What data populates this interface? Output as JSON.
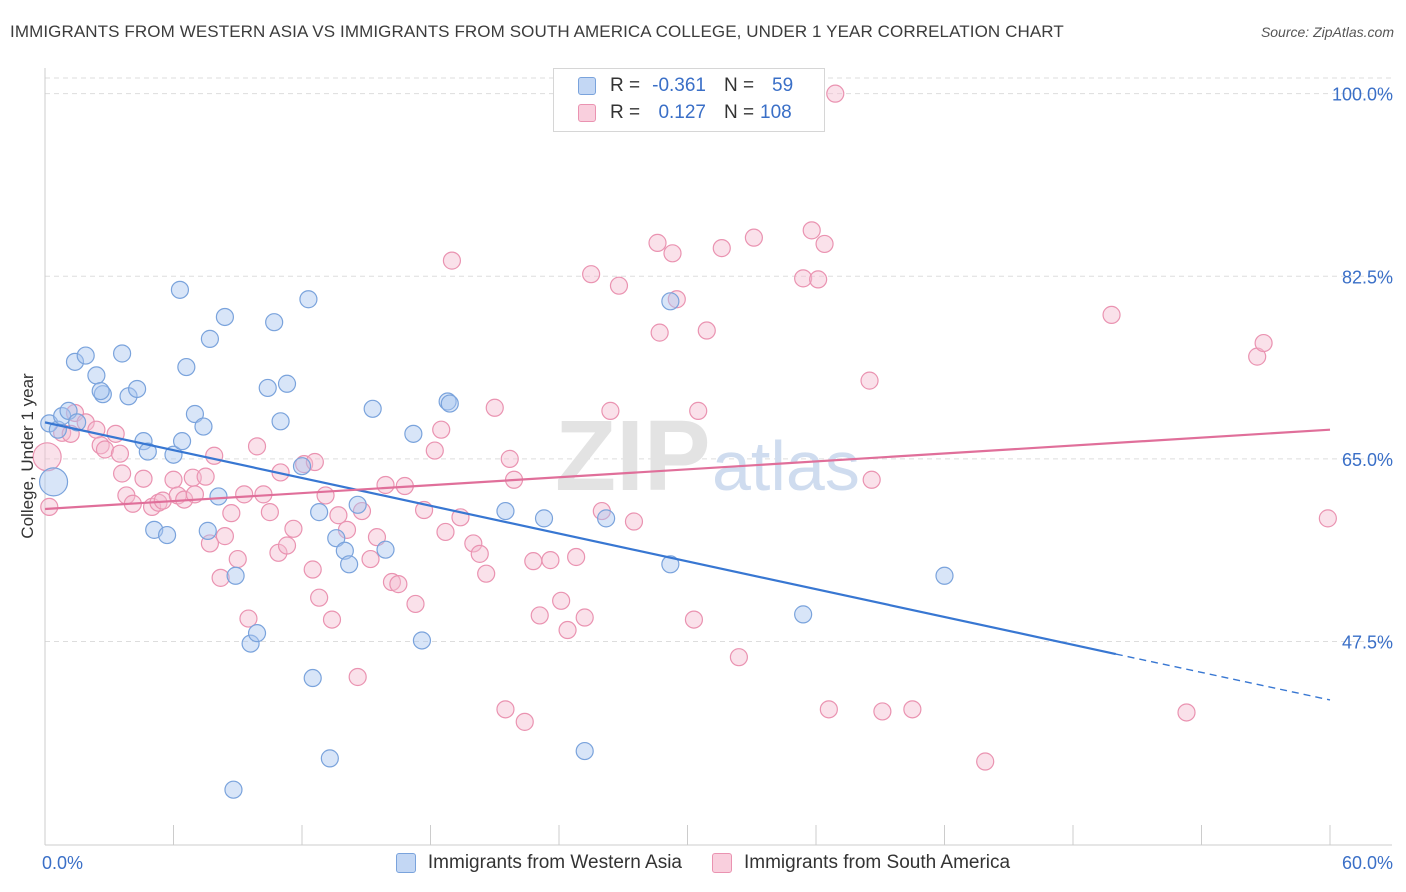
{
  "title": "IMMIGRANTS FROM WESTERN ASIA VS IMMIGRANTS FROM SOUTH AMERICA COLLEGE, UNDER 1 YEAR CORRELATION CHART",
  "source": "Source: ZipAtlas.com",
  "watermark": "ZIPatlas",
  "legend": {
    "row1": {
      "r_label": "R =",
      "r_value": "-0.361",
      "n_label": "N =",
      "n_value": "59"
    },
    "row2": {
      "r_label": "R =",
      "r_value": "0.127",
      "n_label": "N =",
      "n_value": "108"
    }
  },
  "colors": {
    "blue_fill": "#a9c6ef",
    "blue_stroke": "#7aa3dc",
    "blue_line": "#3877d2",
    "pink_fill": "#f5bcd0",
    "pink_stroke": "#ea93b1",
    "pink_line": "#e06f9a",
    "tick_text": "#3a6fc7",
    "grid": "#dddddd"
  },
  "chart_data": {
    "type": "scatter",
    "title": "IMMIGRANTS FROM WESTERN ASIA VS IMMIGRANTS FROM SOUTH AMERICA COLLEGE, UNDER 1 YEAR CORRELATION CHART",
    "xlabel": "",
    "ylabel": "College, Under 1 year",
    "xlim": [
      0,
      60
    ],
    "ylim": [
      28,
      101.5
    ],
    "x_tick_labels": [
      "0.0%",
      "60.0%"
    ],
    "y_ticks": [
      47.5,
      65.0,
      82.5,
      100.0
    ],
    "y_tick_labels": [
      "47.5%",
      "65.0%",
      "82.5%",
      "100.0%"
    ],
    "grid": true,
    "legend_placement": "top-center",
    "series": [
      {
        "name": "Immigrants from Western Asia",
        "color": "#a9c6ef",
        "trend": {
          "x": [
            0,
            50
          ],
          "y": [
            68.5,
            46.3
          ],
          "dashed_to_x": 60,
          "dashed_to_y": 41.9
        },
        "points": [
          [
            0.2,
            68.4
          ],
          [
            0.4,
            62.8
          ],
          [
            0.6,
            67.8
          ],
          [
            0.8,
            69.1
          ],
          [
            1.1,
            69.6
          ],
          [
            1.4,
            74.3
          ],
          [
            1.5,
            68.5
          ],
          [
            1.9,
            74.9
          ],
          [
            2.4,
            73.0
          ],
          [
            2.7,
            71.2
          ],
          [
            2.6,
            71.5
          ],
          [
            3.6,
            75.1
          ],
          [
            3.9,
            71.0
          ],
          [
            4.3,
            71.7
          ],
          [
            4.6,
            66.7
          ],
          [
            4.8,
            65.7
          ],
          [
            5.1,
            58.2
          ],
          [
            5.7,
            57.7
          ],
          [
            6.0,
            65.4
          ],
          [
            6.4,
            66.7
          ],
          [
            6.3,
            81.2
          ],
          [
            6.6,
            73.8
          ],
          [
            7.0,
            69.3
          ],
          [
            7.4,
            68.1
          ],
          [
            7.6,
            58.1
          ],
          [
            7.7,
            76.5
          ],
          [
            8.1,
            61.4
          ],
          [
            8.4,
            78.6
          ],
          [
            8.9,
            53.8
          ],
          [
            9.6,
            47.3
          ],
          [
            9.9,
            48.3
          ],
          [
            10.4,
            71.8
          ],
          [
            10.7,
            78.1
          ],
          [
            11.0,
            68.6
          ],
          [
            11.3,
            72.2
          ],
          [
            12.0,
            64.3
          ],
          [
            12.3,
            80.3
          ],
          [
            12.5,
            44.0
          ],
          [
            12.8,
            59.9
          ],
          [
            13.3,
            36.3
          ],
          [
            13.6,
            57.4
          ],
          [
            14.0,
            56.2
          ],
          [
            14.2,
            54.9
          ],
          [
            14.6,
            60.6
          ],
          [
            15.3,
            69.8
          ],
          [
            15.9,
            56.3
          ],
          [
            17.2,
            67.4
          ],
          [
            17.6,
            47.6
          ],
          [
            18.8,
            70.5
          ],
          [
            18.9,
            70.3
          ],
          [
            21.5,
            60.0
          ],
          [
            23.3,
            59.3
          ],
          [
            25.2,
            37.0
          ],
          [
            26.2,
            59.3
          ],
          [
            29.2,
            54.9
          ],
          [
            29.2,
            80.1
          ],
          [
            35.4,
            50.1
          ],
          [
            42.0,
            53.8
          ],
          [
            8.8,
            33.3
          ]
        ]
      },
      {
        "name": "Immigrants from South America",
        "color": "#f5bcd0",
        "trend": {
          "x": [
            0,
            60
          ],
          "y": [
            60.2,
            67.8
          ]
        },
        "points": [
          [
            0.1,
            65.2
          ],
          [
            0.2,
            60.4
          ],
          [
            0.8,
            67.5
          ],
          [
            1.2,
            67.4
          ],
          [
            1.4,
            69.4
          ],
          [
            1.9,
            68.5
          ],
          [
            2.4,
            67.8
          ],
          [
            2.6,
            66.3
          ],
          [
            2.8,
            65.9
          ],
          [
            3.3,
            67.4
          ],
          [
            3.5,
            65.5
          ],
          [
            3.6,
            63.6
          ],
          [
            3.8,
            61.5
          ],
          [
            4.1,
            60.7
          ],
          [
            4.6,
            63.1
          ],
          [
            5.0,
            60.4
          ],
          [
            5.3,
            60.8
          ],
          [
            5.5,
            61.0
          ],
          [
            6.0,
            63.0
          ],
          [
            6.2,
            61.5
          ],
          [
            6.5,
            61.1
          ],
          [
            6.9,
            63.2
          ],
          [
            7.0,
            61.6
          ],
          [
            7.5,
            63.3
          ],
          [
            7.7,
            56.9
          ],
          [
            7.9,
            65.3
          ],
          [
            8.2,
            53.6
          ],
          [
            8.4,
            57.6
          ],
          [
            8.7,
            59.8
          ],
          [
            9.0,
            55.4
          ],
          [
            9.3,
            61.6
          ],
          [
            9.5,
            49.7
          ],
          [
            9.9,
            66.2
          ],
          [
            10.2,
            61.6
          ],
          [
            10.5,
            59.9
          ],
          [
            10.9,
            56.0
          ],
          [
            11.0,
            63.7
          ],
          [
            11.3,
            56.7
          ],
          [
            11.6,
            58.3
          ],
          [
            12.1,
            64.5
          ],
          [
            12.5,
            54.4
          ],
          [
            12.6,
            64.7
          ],
          [
            12.8,
            51.7
          ],
          [
            13.1,
            61.5
          ],
          [
            13.4,
            49.6
          ],
          [
            13.7,
            59.6
          ],
          [
            14.1,
            58.2
          ],
          [
            14.6,
            44.1
          ],
          [
            14.8,
            60.0
          ],
          [
            15.2,
            55.4
          ],
          [
            15.5,
            57.5
          ],
          [
            15.9,
            62.5
          ],
          [
            16.2,
            53.2
          ],
          [
            16.5,
            53.0
          ],
          [
            16.8,
            62.4
          ],
          [
            17.3,
            51.1
          ],
          [
            17.7,
            60.1
          ],
          [
            18.2,
            65.8
          ],
          [
            18.5,
            67.8
          ],
          [
            18.7,
            58.0
          ],
          [
            19.0,
            84.0
          ],
          [
            19.4,
            59.4
          ],
          [
            20.0,
            56.9
          ],
          [
            20.3,
            55.9
          ],
          [
            20.6,
            54.0
          ],
          [
            21.0,
            69.9
          ],
          [
            21.5,
            41.0
          ],
          [
            21.7,
            65.0
          ],
          [
            21.9,
            63.0
          ],
          [
            22.4,
            39.8
          ],
          [
            22.8,
            55.2
          ],
          [
            23.1,
            50.0
          ],
          [
            23.6,
            55.3
          ],
          [
            24.1,
            51.4
          ],
          [
            24.4,
            48.6
          ],
          [
            24.8,
            55.6
          ],
          [
            25.2,
            49.8
          ],
          [
            25.5,
            82.7
          ],
          [
            26.0,
            60.0
          ],
          [
            26.4,
            69.6
          ],
          [
            26.8,
            81.6
          ],
          [
            27.5,
            59.0
          ],
          [
            28.6,
            85.7
          ],
          [
            28.7,
            77.1
          ],
          [
            29.3,
            84.7
          ],
          [
            29.5,
            80.3
          ],
          [
            30.3,
            49.6
          ],
          [
            30.5,
            69.6
          ],
          [
            30.9,
            77.3
          ],
          [
            31.6,
            85.2
          ],
          [
            32.4,
            46.0
          ],
          [
            33.1,
            86.2
          ],
          [
            35.4,
            82.3
          ],
          [
            35.8,
            86.9
          ],
          [
            36.1,
            82.2
          ],
          [
            36.4,
            85.6
          ],
          [
            36.6,
            41.0
          ],
          [
            36.9,
            100.0
          ],
          [
            38.5,
            72.5
          ],
          [
            38.6,
            63.0
          ],
          [
            39.1,
            40.8
          ],
          [
            40.5,
            41.0
          ],
          [
            43.9,
            36.0
          ],
          [
            49.8,
            78.8
          ],
          [
            53.3,
            40.7
          ],
          [
            56.6,
            74.8
          ],
          [
            56.9,
            76.1
          ],
          [
            59.9,
            59.3
          ]
        ]
      }
    ]
  }
}
